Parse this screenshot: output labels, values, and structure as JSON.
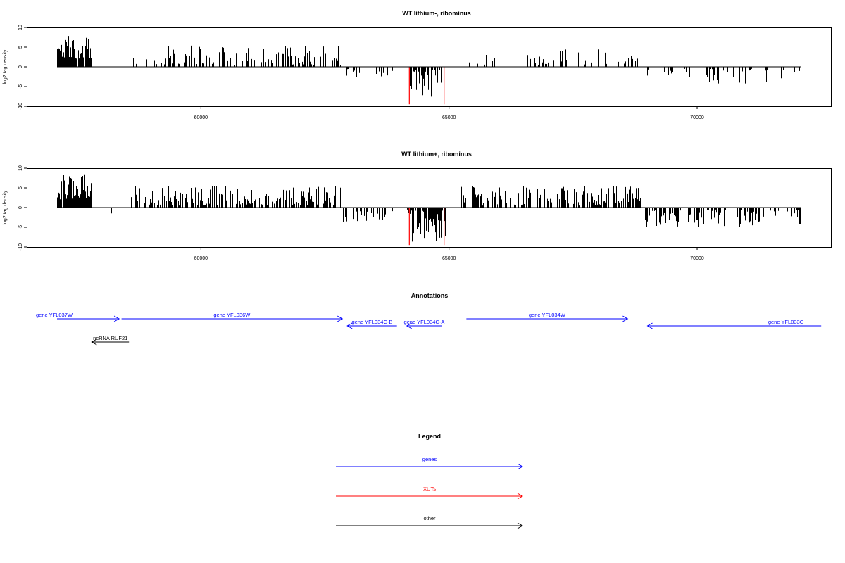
{
  "chart_data": [
    {
      "type": "bar",
      "title": "WT lithium-, ribominus",
      "ylabel": "log2 tag density",
      "ylim": [
        -10,
        10
      ],
      "yticks": [
        -10,
        -5,
        0,
        5,
        10
      ],
      "xticks": [
        60000,
        65000,
        70000
      ],
      "xlim": [
        57100,
        72100
      ],
      "seed": 11,
      "colors": {
        "bars": "#000000",
        "xut_bars": "#ff0000"
      },
      "segments": [
        {
          "from": 57100,
          "to": 57800,
          "sign": 1,
          "min": 2.0,
          "max": 8.0,
          "density": 0.9
        },
        {
          "from": 58550,
          "to": 59100,
          "sign": 1,
          "min": 0.5,
          "max": 3.5,
          "density": 0.15
        },
        {
          "from": 59100,
          "to": 62800,
          "sign": 1,
          "min": 0.5,
          "max": 5.5,
          "density": 0.4
        },
        {
          "from": 62900,
          "to": 63900,
          "sign": -1,
          "min": 0.5,
          "max": 3.0,
          "density": 0.2
        },
        {
          "from": 64200,
          "to": 64950,
          "sign": -1,
          "min": 0.5,
          "max": 8.0,
          "density": 0.6
        },
        {
          "from": 65400,
          "to": 66000,
          "sign": 1,
          "min": 0.5,
          "max": 4.0,
          "density": 0.2
        },
        {
          "from": 66500,
          "to": 68850,
          "sign": 1,
          "min": 0.5,
          "max": 4.5,
          "density": 0.3
        },
        {
          "from": 68950,
          "to": 72100,
          "sign": -1,
          "min": 0.5,
          "max": 4.5,
          "density": 0.22
        }
      ],
      "red_bars": [
        {
          "x": 64200,
          "y": -9.5
        },
        {
          "x": 64900,
          "y": -9.5
        }
      ]
    },
    {
      "type": "bar",
      "title": "WT lithium+, ribominus",
      "ylabel": "log2 tag density",
      "ylim": [
        -10,
        10
      ],
      "yticks": [
        -10,
        -5,
        0,
        5,
        10
      ],
      "xticks": [
        60000,
        65000,
        70000
      ],
      "xlim": [
        57100,
        72100
      ],
      "seed": 29,
      "colors": {
        "bars": "#000000",
        "xut_bars": "#ff0000"
      },
      "segments": [
        {
          "from": 57100,
          "to": 57800,
          "sign": 1,
          "min": 2.0,
          "max": 9.0,
          "density": 0.95
        },
        {
          "from": 57800,
          "to": 58550,
          "sign": -1,
          "min": 0.5,
          "max": 2.5,
          "density": 0.08
        },
        {
          "from": 58550,
          "to": 62800,
          "sign": 1,
          "min": 0.5,
          "max": 5.5,
          "density": 0.6
        },
        {
          "from": 62850,
          "to": 63900,
          "sign": -1,
          "min": 0.5,
          "max": 4.0,
          "density": 0.35
        },
        {
          "from": 64150,
          "to": 64950,
          "sign": -1,
          "min": 0.5,
          "max": 9.0,
          "density": 0.85
        },
        {
          "from": 65250,
          "to": 68850,
          "sign": 1,
          "min": 0.5,
          "max": 5.5,
          "density": 0.55
        },
        {
          "from": 68900,
          "to": 72100,
          "sign": -1,
          "min": 0.5,
          "max": 5.0,
          "density": 0.5
        }
      ],
      "red_bars": [
        {
          "x": 64200,
          "y": -9.5
        },
        {
          "x": 64900,
          "y": -9.5
        }
      ]
    }
  ],
  "annotations": {
    "title": "Annotations",
    "features": [
      {
        "label": "gene YFL037W",
        "start": 57100,
        "end": 58350,
        "strand": "+",
        "color": "#0000ff",
        "row": 0
      },
      {
        "label": "gene YFL036W",
        "start": 58400,
        "end": 62850,
        "strand": "+",
        "color": "#0000ff",
        "row": 0
      },
      {
        "label": "gene YFL034C-B",
        "start": 62950,
        "end": 63950,
        "strand": "-",
        "color": "#0000ff",
        "row": 1
      },
      {
        "label": "gene YFL034C-A",
        "start": 64150,
        "end": 64850,
        "strand": "-",
        "color": "#0000ff",
        "row": 1
      },
      {
        "label": "gene YFL034W",
        "start": 65350,
        "end": 68600,
        "strand": "+",
        "color": "#0000ff",
        "row": 0
      },
      {
        "label": "gene YFL033C",
        "start": 69000,
        "end": 72500,
        "strand": "-",
        "color": "#0000ff",
        "row": 1
      },
      {
        "label": "ncRNA RUF21",
        "start": 57800,
        "end": 58550,
        "strand": "-",
        "color": "#000000",
        "row": 2
      }
    ]
  },
  "legend": {
    "title": "Legend",
    "items": [
      {
        "label": "genes",
        "color": "#0000ff"
      },
      {
        "label": "XUTs",
        "color": "#ff0000"
      },
      {
        "label": "other",
        "color": "#000000"
      }
    ]
  }
}
